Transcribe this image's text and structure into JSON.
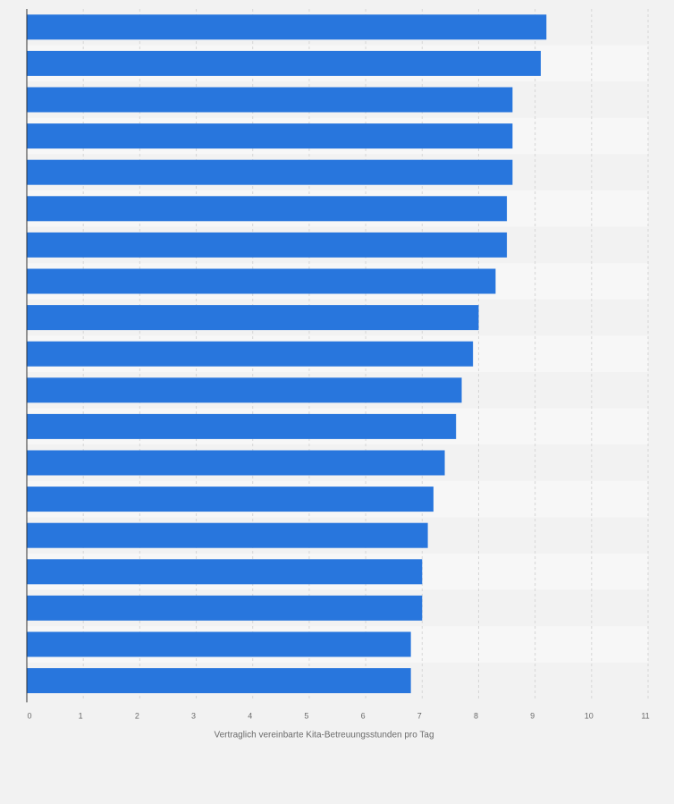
{
  "chart_data": {
    "type": "bar",
    "orientation": "horizontal",
    "title": "",
    "xlabel": "Vertraglich vereinbarte Kita-Betreuungsstunden pro Tag",
    "ylabel": "",
    "xlim": [
      0,
      11
    ],
    "xticks": [
      0,
      1,
      2,
      3,
      4,
      5,
      6,
      7,
      8,
      9,
      10,
      11
    ],
    "grid": true,
    "series": [
      {
        "values": [
          9.2,
          9.1,
          8.6,
          8.6,
          8.6,
          8.5,
          8.5,
          8.3,
          8.0,
          7.9,
          7.7,
          7.6,
          7.4,
          7.2,
          7.1,
          7.0,
          7.0,
          6.8,
          6.8
        ]
      }
    ],
    "colors": {
      "bar": "#2876dd",
      "band_light": "#f7f7f7",
      "band_dark": "#f2f2f2",
      "grid": "#d6d6d6",
      "axis": "#333333"
    }
  }
}
